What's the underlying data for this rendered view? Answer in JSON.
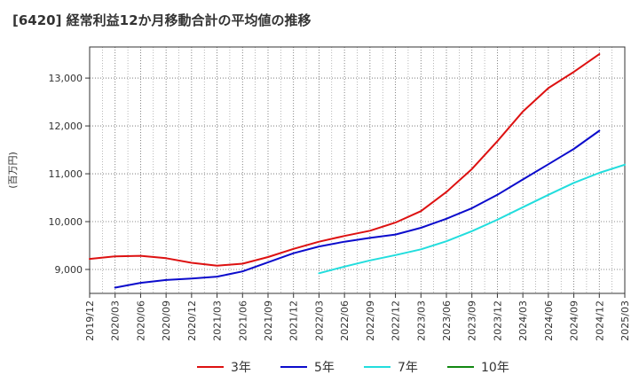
{
  "chart_data": {
    "type": "line",
    "title": "[6420]  経常利益12か月移動合計の平均値の推移",
    "ylabel": "(百万円)",
    "xlabel": "",
    "ylim": [
      8500,
      13650
    ],
    "yticks": [
      9000,
      10000,
      11000,
      12000,
      13000
    ],
    "ytick_labels": [
      "9,000",
      "10,000",
      "11,000",
      "12,000",
      "13,000"
    ],
    "x_categories": [
      "2019/12",
      "2020/03",
      "2020/06",
      "2020/09",
      "2020/12",
      "2021/03",
      "2021/06",
      "2021/09",
      "2021/12",
      "2022/03",
      "2022/06",
      "2022/09",
      "2022/12",
      "2023/03",
      "2023/06",
      "2023/09",
      "2023/12",
      "2024/03",
      "2024/06",
      "2024/09",
      "2024/12",
      "2025/03"
    ],
    "grid": true,
    "legend_position": "bottom",
    "series": [
      {
        "name": "3年",
        "color": "#dd1111",
        "start_index": 0,
        "values": [
          9220,
          9275,
          9285,
          9235,
          9140,
          9080,
          9120,
          9260,
          9430,
          9580,
          9700,
          9810,
          9980,
          10220,
          10620,
          11100,
          11680,
          12300,
          12790,
          13130,
          13500
        ]
      },
      {
        "name": "5年",
        "color": "#0b0bcc",
        "start_index": 1,
        "values": [
          8620,
          8720,
          8780,
          8810,
          8850,
          8960,
          9150,
          9340,
          9480,
          9580,
          9660,
          9730,
          9870,
          10060,
          10280,
          10560,
          10880,
          11200,
          11520,
          11900
        ]
      },
      {
        "name": "7年",
        "color": "#22dddd",
        "start_index": 9,
        "values": [
          8920,
          9060,
          9190,
          9300,
          9420,
          9590,
          9800,
          10040,
          10300,
          10560,
          10810,
          11020,
          11190
        ]
      },
      {
        "name": "10年",
        "color": "#118811",
        "start_index": 21,
        "values": []
      }
    ]
  }
}
